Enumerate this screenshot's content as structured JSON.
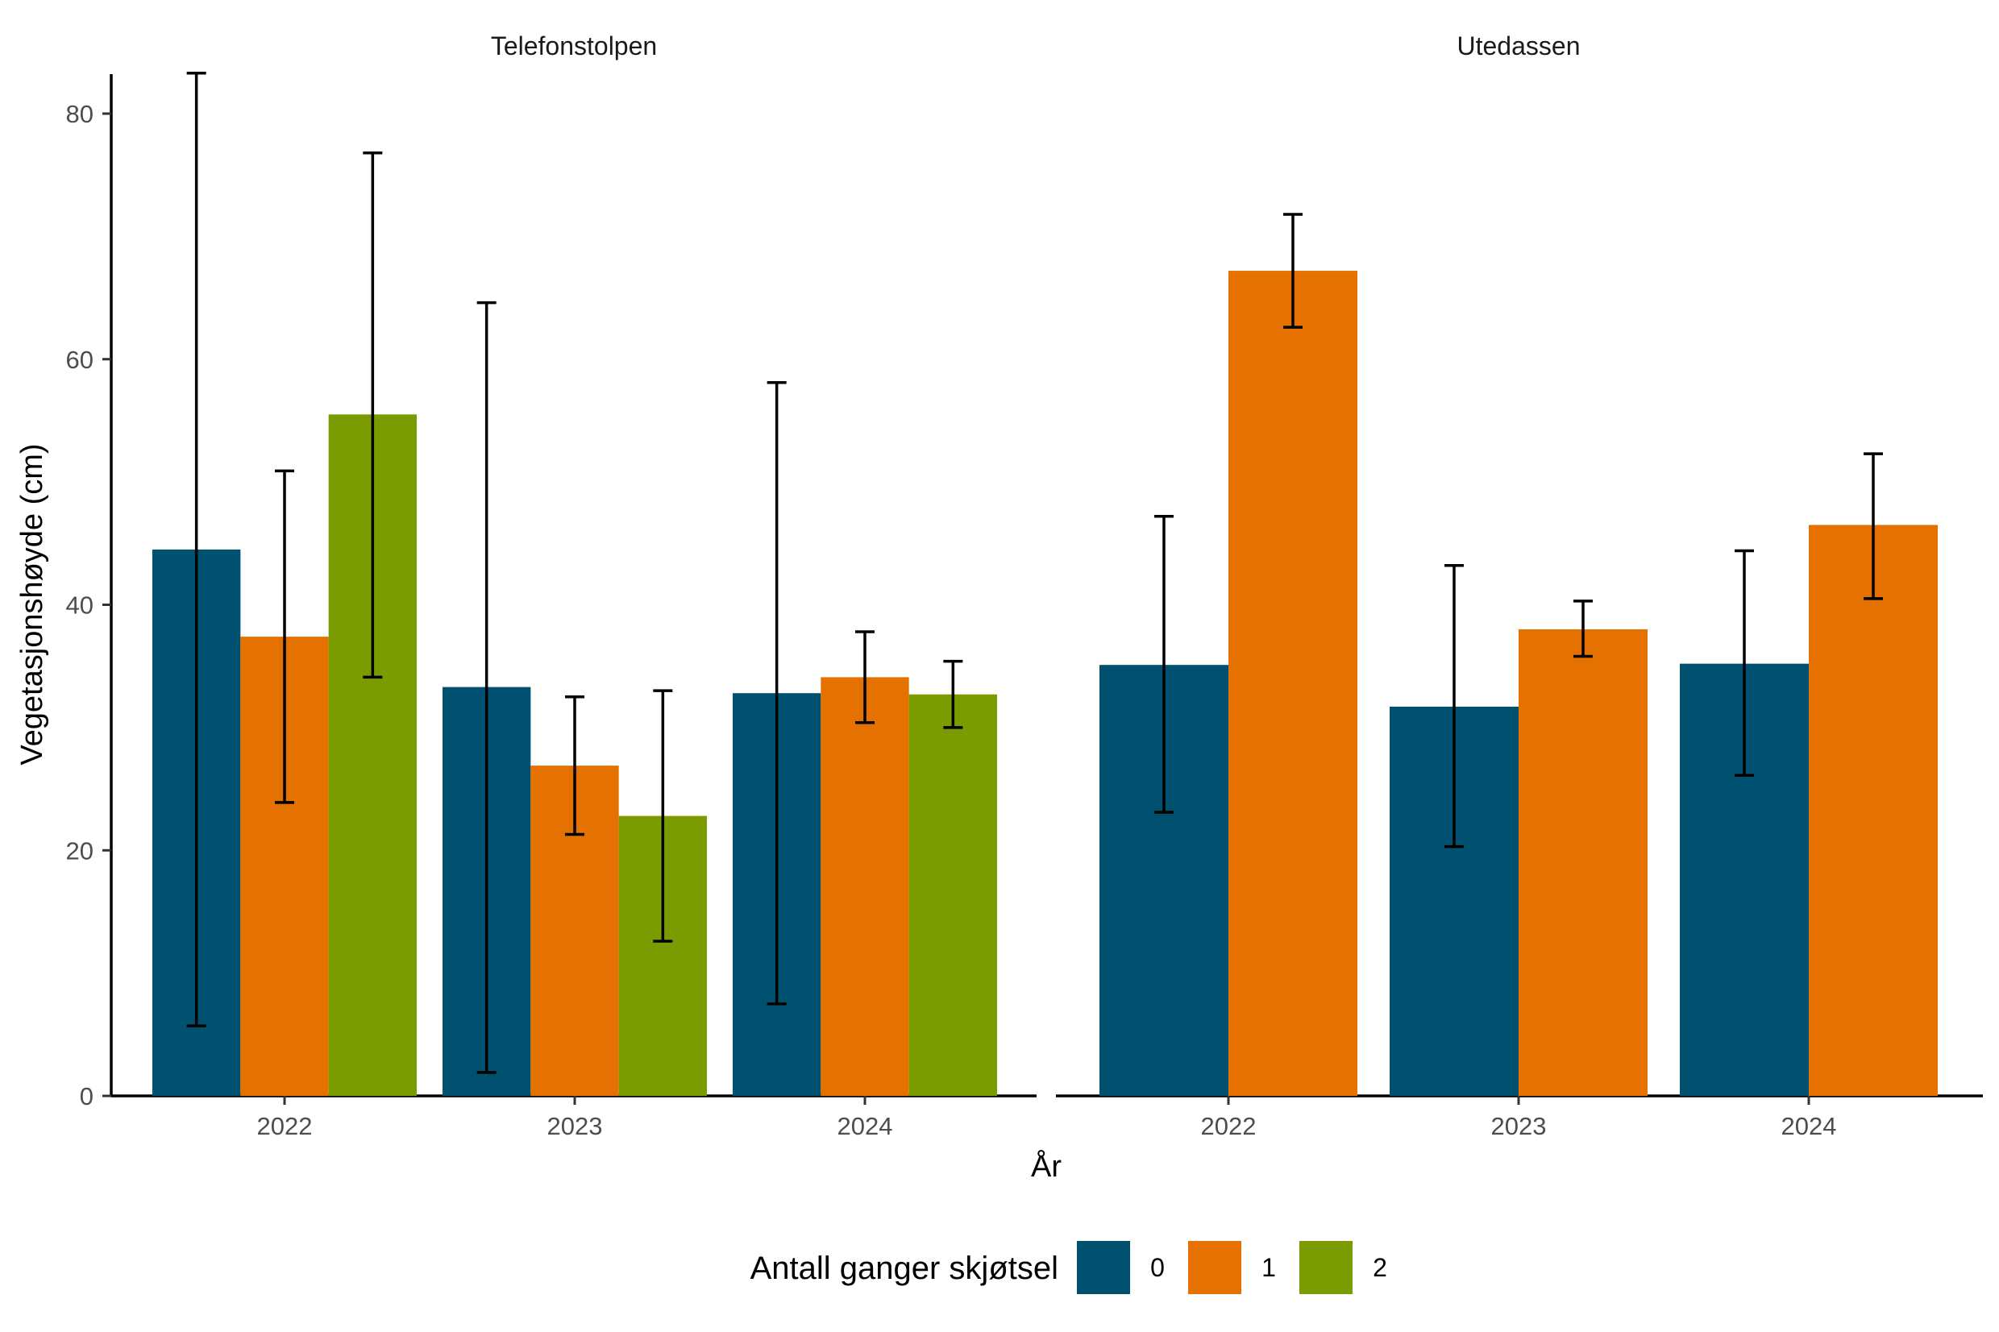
{
  "chart_data": {
    "type": "bar",
    "facets": [
      "Telefonstolpen",
      "Utedassen"
    ],
    "categories": [
      "2022",
      "2023",
      "2024"
    ],
    "xlabel": "År",
    "ylabel": "Vegetasjonshøyde (cm)",
    "ylim": [
      0,
      83
    ],
    "yticks": [
      0,
      20,
      40,
      60,
      80
    ],
    "grid": false,
    "legend": {
      "title": "Antall ganger skjøtsel",
      "position": "bottom",
      "entries": [
        {
          "label": "0",
          "color": "#00506F"
        },
        {
          "label": "1",
          "color": "#E57200"
        },
        {
          "label": "2",
          "color": "#7A9C01"
        }
      ]
    },
    "panels": [
      {
        "facet": "Telefonstolpen",
        "series": [
          {
            "group": "0",
            "values": [
              44.5,
              33.3,
              32.8
            ],
            "err_low": [
              5.7,
              1.9,
              7.5
            ],
            "err_high": [
              83.3,
              64.6,
              58.1
            ]
          },
          {
            "group": "1",
            "values": [
              37.4,
              26.9,
              34.1
            ],
            "err_low": [
              23.9,
              21.3,
              30.4
            ],
            "err_high": [
              50.9,
              32.5,
              37.8
            ]
          },
          {
            "group": "2",
            "values": [
              55.5,
              22.8,
              32.7
            ],
            "err_low": [
              34.1,
              12.6,
              30.0
            ],
            "err_high": [
              76.8,
              33.0,
              35.4
            ]
          }
        ]
      },
      {
        "facet": "Utedassen",
        "series": [
          {
            "group": "0",
            "values": [
              35.1,
              31.7,
              35.2
            ],
            "err_low": [
              23.1,
              20.3,
              26.1
            ],
            "err_high": [
              47.2,
              43.2,
              44.4
            ]
          },
          {
            "group": "1",
            "values": [
              67.2,
              38.0,
              46.5
            ],
            "err_low": [
              62.6,
              35.8,
              40.5
            ],
            "err_high": [
              71.8,
              40.3,
              52.3
            ]
          }
        ]
      }
    ]
  }
}
